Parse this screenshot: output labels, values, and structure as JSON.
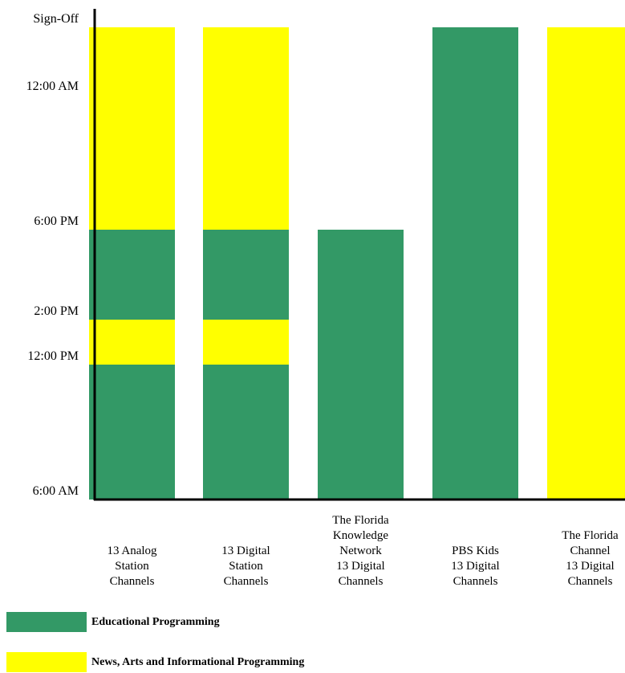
{
  "chart_data": {
    "type": "bar",
    "title": "",
    "xlabel": "",
    "ylabel": "",
    "y_ticks": [
      {
        "label": "6:00 AM",
        "hour": 6
      },
      {
        "label": "12:00 PM",
        "hour": 12
      },
      {
        "label": "2:00 PM",
        "hour": 14
      },
      {
        "label": "6:00 PM",
        "hour": 18
      },
      {
        "label": "12:00 AM",
        "hour": 24
      },
      {
        "label": "Sign-Off",
        "hour": 27
      }
    ],
    "ylim_hours": [
      6,
      27
    ],
    "categories": [
      {
        "label_lines": [
          "13 Analog",
          "Station",
          "Channels"
        ],
        "segments": [
          {
            "from": 6,
            "to": 12,
            "series": "educational"
          },
          {
            "from": 12,
            "to": 14,
            "series": "news"
          },
          {
            "from": 14,
            "to": 18,
            "series": "educational"
          },
          {
            "from": 18,
            "to": 27,
            "series": "news"
          }
        ]
      },
      {
        "label_lines": [
          "13 Digital",
          "Station",
          "Channels"
        ],
        "segments": [
          {
            "from": 6,
            "to": 12,
            "series": "educational"
          },
          {
            "from": 12,
            "to": 14,
            "series": "news"
          },
          {
            "from": 14,
            "to": 18,
            "series": "educational"
          },
          {
            "from": 18,
            "to": 27,
            "series": "news"
          }
        ]
      },
      {
        "label_lines": [
          "The Florida",
          "Knowledge",
          "Network",
          "13 Digital",
          "Channels"
        ],
        "segments": [
          {
            "from": 6,
            "to": 18,
            "series": "educational"
          }
        ]
      },
      {
        "label_lines": [
          "PBS Kids",
          "13 Digital",
          "Channels"
        ],
        "segments": [
          {
            "from": 6,
            "to": 27,
            "series": "educational"
          }
        ]
      },
      {
        "label_lines": [
          "The Florida",
          "Channel",
          "13 Digital",
          "Channels"
        ],
        "segments": [
          {
            "from": 6,
            "to": 27,
            "series": "news"
          }
        ]
      }
    ],
    "series": [
      {
        "key": "educational",
        "name": "Educational Programming",
        "color": "#339966"
      },
      {
        "key": "news",
        "name": "News, Arts and Informational Programming",
        "color": "#ffff00"
      }
    ],
    "grid": false,
    "legend_position": "bottom-left"
  }
}
